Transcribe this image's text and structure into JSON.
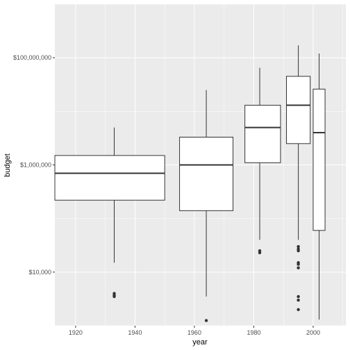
{
  "chart_data": {
    "type": "boxplot",
    "xlabel": "year",
    "ylabel": "budget",
    "y_scale": "log10",
    "ylim": [
      1000,
      1000000000
    ],
    "xlim": [
      1913,
      2011
    ],
    "x_ticks": [
      {
        "value": 1920,
        "label": "1920"
      },
      {
        "value": 1940,
        "label": "1940"
      },
      {
        "value": 1960,
        "label": "1960"
      },
      {
        "value": 1980,
        "label": "1980"
      },
      {
        "value": 2000,
        "label": "2000"
      }
    ],
    "y_ticks": [
      {
        "value": 10000,
        "label": "$10,000"
      },
      {
        "value": 1000000,
        "label": "$1,000,000"
      },
      {
        "value": 100000000,
        "label": "$100,000,000"
      }
    ],
    "grid": true,
    "colors": {
      "panel": "#ebebeb",
      "grid_major": "#ffffff",
      "box_fill": "#ffffff",
      "box_line": "#333333",
      "outlier": "#333333",
      "tick_text": "#4d4d4d"
    },
    "boxes": [
      {
        "xmin": 1913,
        "xmax": 1950,
        "center": 1933,
        "whisker_low": 15000,
        "q1": 220000,
        "median": 700000,
        "q3": 1500000,
        "whisker_high": 5000000,
        "outliers": [
          4000,
          3700,
          3500
        ]
      },
      {
        "xmin": 1955,
        "xmax": 1973,
        "center": 1964,
        "whisker_low": 3500,
        "q1": 140000,
        "median": 1000000,
        "q3": 3300000,
        "whisker_high": 25000000,
        "outliers": [
          1250
        ]
      },
      {
        "xmin": 1977,
        "xmax": 1989,
        "center": 1982,
        "whisker_low": 40000,
        "q1": 1100000,
        "median": 5000000,
        "q3": 13000000,
        "whisker_high": 65000000,
        "outliers": [
          25000,
          23000
        ]
      },
      {
        "xmin": 1991,
        "xmax": 1999,
        "center": 1995,
        "whisker_low": 40000,
        "q1": 2500000,
        "median": 13000000,
        "q3": 45000000,
        "whisker_high": 170000000,
        "outliers": [
          30000,
          27000,
          25000,
          15000,
          14000,
          12000,
          3500,
          3000,
          2000
        ]
      },
      {
        "xmin": 2000,
        "xmax": 2004,
        "center": 2002,
        "whisker_low": 1300,
        "q1": 60000,
        "median": 4000000,
        "q3": 26000000,
        "whisker_high": 120000000,
        "outliers": []
      }
    ]
  }
}
